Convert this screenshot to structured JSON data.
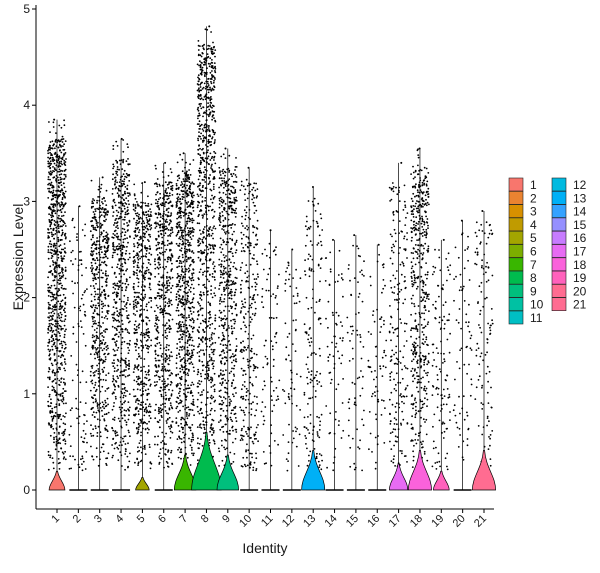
{
  "chart_data": {
    "type": "violin",
    "xlabel": "Identity",
    "ylabel": "Expression Level",
    "ylim": [
      -0.25,
      5.05
    ],
    "yticks": [
      0,
      1,
      2,
      3,
      4,
      5
    ],
    "grid": false,
    "legend_position": "right",
    "categories": [
      "1",
      "2",
      "3",
      "4",
      "5",
      "6",
      "7",
      "8",
      "9",
      "10",
      "11",
      "12",
      "13",
      "14",
      "15",
      "16",
      "17",
      "18",
      "19",
      "20",
      "21"
    ],
    "colors": [
      "#F8766D",
      "#EA8331",
      "#D89000",
      "#C09B00",
      "#A3A500",
      "#7CAE00",
      "#39B600",
      "#00BB4E",
      "#00BF7D",
      "#00C1A3",
      "#00BFC4",
      "#00BAE0",
      "#00B0F6",
      "#35A2FF",
      "#9590FF",
      "#C77CFF",
      "#E76BF3",
      "#FA62DB",
      "#FF62BC",
      "#FF6C91",
      "#FF6C91"
    ],
    "series": [
      {
        "name": "1",
        "max": 3.85,
        "point_density": 0.95,
        "violin_peak": 0.12
      },
      {
        "name": "2",
        "max": 2.95,
        "point_density": 0.08,
        "violin_peak": 0.0
      },
      {
        "name": "3",
        "max": 3.25,
        "point_density": 0.55,
        "violin_peak": 0.0
      },
      {
        "name": "4",
        "max": 3.65,
        "point_density": 0.6,
        "violin_peak": 0.0
      },
      {
        "name": "5",
        "max": 3.2,
        "point_density": 0.55,
        "violin_peak": 0.05
      },
      {
        "name": "6",
        "max": 3.4,
        "point_density": 0.6,
        "violin_peak": 0.0
      },
      {
        "name": "7",
        "max": 3.5,
        "point_density": 0.8,
        "violin_peak": 0.3
      },
      {
        "name": "8",
        "max": 4.82,
        "point_density": 0.9,
        "violin_peak": 0.55
      },
      {
        "name": "9",
        "max": 3.55,
        "point_density": 0.55,
        "violin_peak": 0.3
      },
      {
        "name": "10",
        "max": 3.35,
        "point_density": 0.3,
        "violin_peak": 0.0
      },
      {
        "name": "11",
        "max": 2.7,
        "point_density": 0.06,
        "violin_peak": 0.0
      },
      {
        "name": "12",
        "max": 2.5,
        "point_density": 0.05,
        "violin_peak": 0.0
      },
      {
        "name": "13",
        "max": 3.15,
        "point_density": 0.15,
        "violin_peak": 0.35
      },
      {
        "name": "14",
        "max": 2.6,
        "point_density": 0.05,
        "violin_peak": 0.0
      },
      {
        "name": "15",
        "max": 2.65,
        "point_density": 0.05,
        "violin_peak": 0.0
      },
      {
        "name": "16",
        "max": 2.55,
        "point_density": 0.05,
        "violin_peak": 0.0
      },
      {
        "name": "17",
        "max": 3.4,
        "point_density": 0.2,
        "violin_peak": 0.2
      },
      {
        "name": "18",
        "max": 3.55,
        "point_density": 0.5,
        "violin_peak": 0.35
      },
      {
        "name": "19",
        "max": 2.6,
        "point_density": 0.1,
        "violin_peak": 0.12
      },
      {
        "name": "20",
        "max": 2.8,
        "point_density": 0.05,
        "violin_peak": 0.0
      },
      {
        "name": "21",
        "max": 2.9,
        "point_density": 0.1,
        "violin_peak": 0.35
      }
    ],
    "legend": [
      {
        "label": "1",
        "color": "#F8766D"
      },
      {
        "label": "2",
        "color": "#EA8331"
      },
      {
        "label": "3",
        "color": "#D89000"
      },
      {
        "label": "4",
        "color": "#C09B00"
      },
      {
        "label": "5",
        "color": "#A3A500"
      },
      {
        "label": "6",
        "color": "#7CAE00"
      },
      {
        "label": "7",
        "color": "#39B600"
      },
      {
        "label": "8",
        "color": "#00BB4E"
      },
      {
        "label": "9",
        "color": "#00BF7D"
      },
      {
        "label": "10",
        "color": "#00C1A3"
      },
      {
        "label": "11",
        "color": "#00BFC4"
      },
      {
        "label": "12",
        "color": "#00BAE0"
      },
      {
        "label": "13",
        "color": "#00B0F6"
      },
      {
        "label": "14",
        "color": "#35A2FF"
      },
      {
        "label": "15",
        "color": "#9590FF"
      },
      {
        "label": "16",
        "color": "#C77CFF"
      },
      {
        "label": "17",
        "color": "#E76BF3"
      },
      {
        "label": "18",
        "color": "#FA62DB"
      },
      {
        "label": "19",
        "color": "#FF62BC"
      },
      {
        "label": "20",
        "color": "#FF6C91"
      },
      {
        "label": "21",
        "color": "#FF6C91"
      }
    ]
  }
}
